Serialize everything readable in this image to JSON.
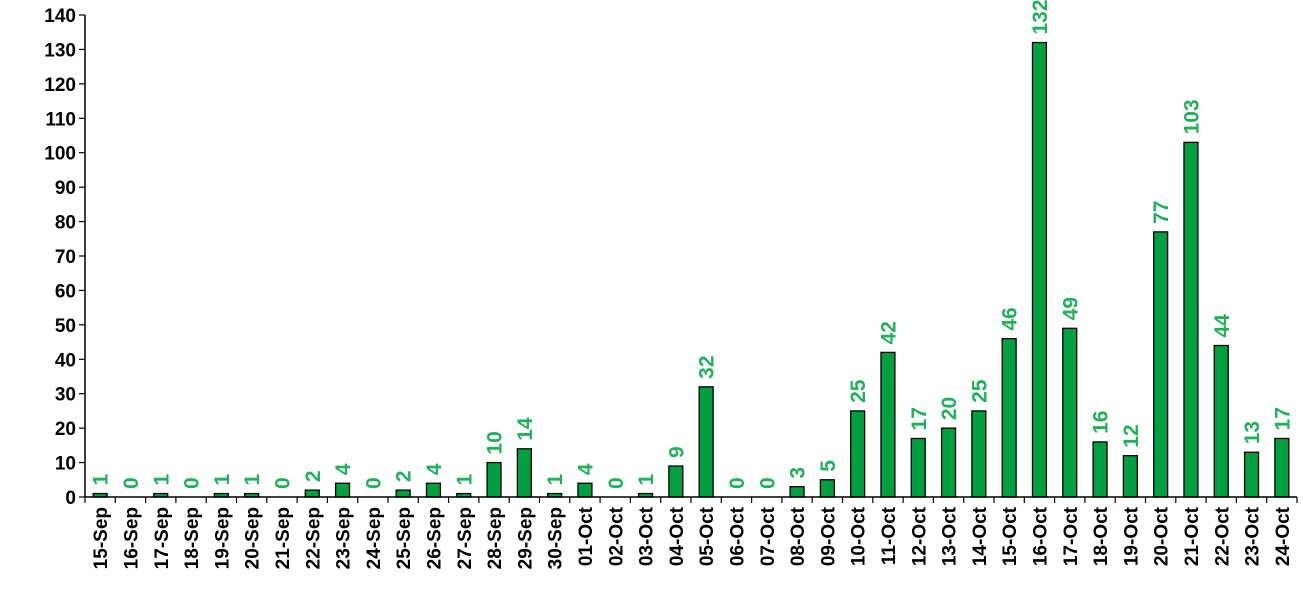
{
  "chart_data": {
    "type": "bar",
    "title": "",
    "xlabel": "",
    "ylabel": "",
    "ylim": [
      0,
      140
    ],
    "yticks": [
      0,
      10,
      20,
      30,
      40,
      50,
      60,
      70,
      80,
      90,
      100,
      110,
      120,
      130,
      140
    ],
    "grid": false,
    "legend": "none",
    "bar_color": "#00A040",
    "label_color": "#21B15A",
    "categories": [
      "15-Sep",
      "16-Sep",
      "17-Sep",
      "18-Sep",
      "19-Sep",
      "20-Sep",
      "21-Sep",
      "22-Sep",
      "23-Sep",
      "24-Sep",
      "25-Sep",
      "26-Sep",
      "27-Sep",
      "28-Sep",
      "29-Sep",
      "30-Sep",
      "01-Oct",
      "02-Oct",
      "03-Oct",
      "04-Oct",
      "05-Oct",
      "06-Oct",
      "07-Oct",
      "08-Oct",
      "09-Oct",
      "10-Oct",
      "11-Oct",
      "12-Oct",
      "13-Oct",
      "14-Oct",
      "15-Oct",
      "16-Oct",
      "17-Oct",
      "18-Oct",
      "19-Oct",
      "20-Oct",
      "21-Oct",
      "22-Oct",
      "23-Oct",
      "24-Oct"
    ],
    "values": [
      1,
      0,
      1,
      0,
      1,
      1,
      0,
      2,
      4,
      0,
      2,
      4,
      1,
      10,
      14,
      1,
      4,
      0,
      1,
      9,
      32,
      0,
      0,
      3,
      5,
      25,
      42,
      17,
      20,
      25,
      46,
      132,
      49,
      16,
      12,
      77,
      103,
      44,
      13,
      17
    ]
  }
}
